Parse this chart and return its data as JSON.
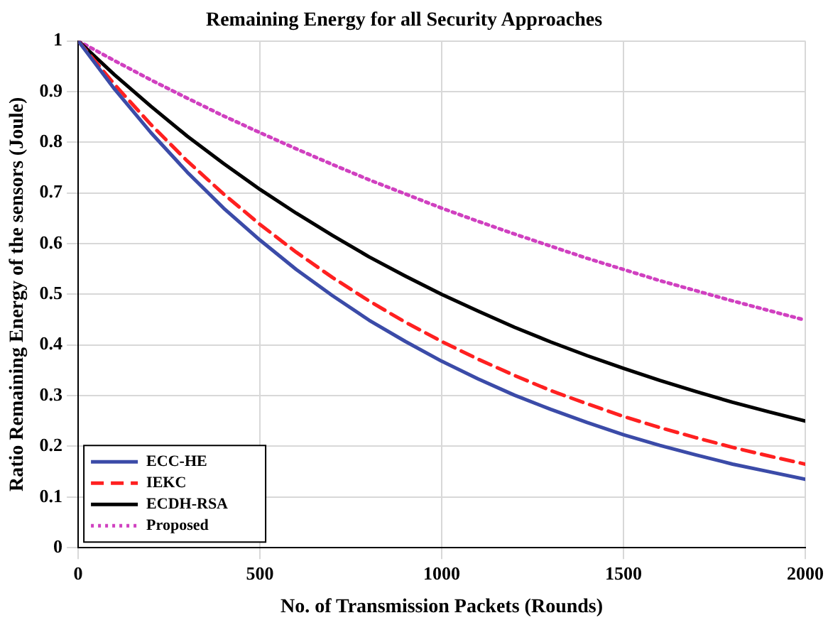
{
  "chart_data": {
    "type": "line",
    "title": "Remaining Energy for all Security Approaches",
    "xlabel": "No. of Transmission Packets (Rounds)",
    "ylabel": "Ratio Remaining Energy of the sensors (Joule)",
    "x": [
      0,
      100,
      200,
      300,
      400,
      500,
      600,
      700,
      800,
      900,
      1000,
      1100,
      1200,
      1300,
      1400,
      1500,
      1600,
      1700,
      1800,
      1900,
      2000
    ],
    "series": [
      {
        "name": "ECC-HE",
        "color": "#3b4ba8",
        "line_style": "solid",
        "values": [
          1,
          0.905,
          0.819,
          0.741,
          0.67,
          0.607,
          0.549,
          0.497,
          0.449,
          0.407,
          0.368,
          0.333,
          0.301,
          0.273,
          0.247,
          0.223,
          0.202,
          0.183,
          0.165,
          0.15,
          0.135
        ]
      },
      {
        "name": "IEKC",
        "color": "#ff2020",
        "line_style": "dashed",
        "values": [
          1,
          0.914,
          0.835,
          0.763,
          0.698,
          0.638,
          0.583,
          0.533,
          0.487,
          0.445,
          0.407,
          0.372,
          0.34,
          0.31,
          0.284,
          0.259,
          0.237,
          0.217,
          0.198,
          0.181,
          0.165
        ]
      },
      {
        "name": "ECDH-RSA",
        "color": "#000000",
        "line_style": "solid",
        "values": [
          1,
          0.933,
          0.871,
          0.812,
          0.758,
          0.707,
          0.66,
          0.616,
          0.574,
          0.536,
          0.5,
          0.467,
          0.435,
          0.406,
          0.379,
          0.354,
          0.33,
          0.308,
          0.287,
          0.268,
          0.25
        ]
      },
      {
        "name": "Proposed",
        "color": "#d040c0",
        "line_style": "dotted",
        "values": [
          1,
          0.961,
          0.923,
          0.887,
          0.852,
          0.819,
          0.787,
          0.756,
          0.726,
          0.698,
          0.67,
          0.644,
          0.619,
          0.595,
          0.571,
          0.549,
          0.527,
          0.507,
          0.487,
          0.468,
          0.449
        ]
      }
    ],
    "xlim": [
      0,
      2000
    ],
    "xticks": [
      0,
      500,
      1000,
      1500,
      2000
    ],
    "ylim": [
      0,
      1
    ],
    "yticks": [
      0,
      0.1,
      0.2,
      0.3,
      0.4,
      0.5,
      0.6,
      0.7,
      0.8,
      0.9,
      1
    ],
    "grid": true,
    "legend": "bottom left",
    "marker": "none"
  }
}
